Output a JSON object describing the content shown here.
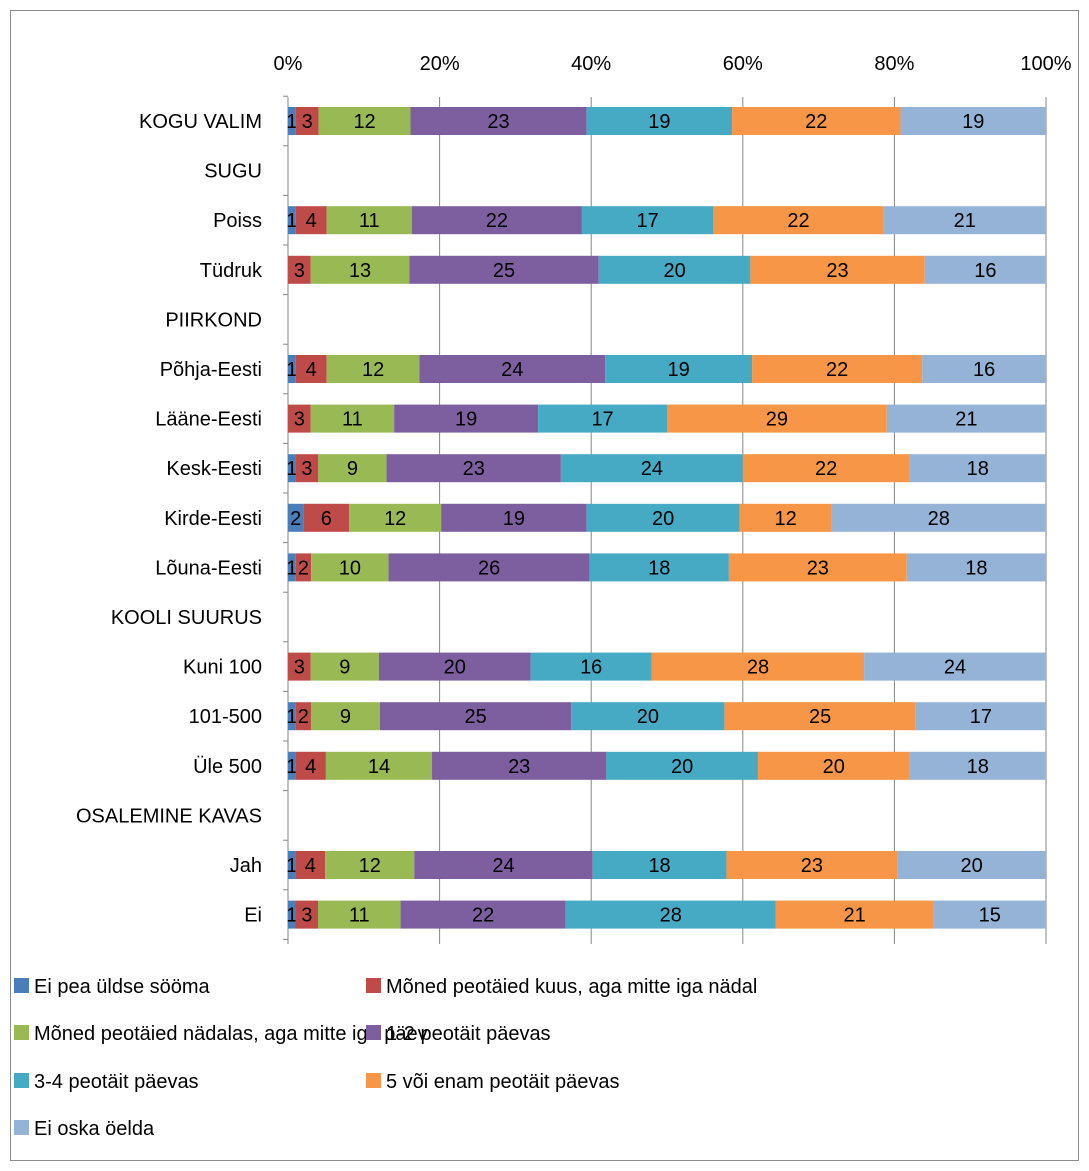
{
  "chart_data": {
    "type": "bar",
    "orientation": "horizontal",
    "stacked": "percent",
    "xlim": [
      0,
      100
    ],
    "x_ticks": [
      "0%",
      "20%",
      "40%",
      "60%",
      "80%",
      "100%"
    ],
    "grid": true,
    "legend_position": "bottom",
    "categories": [
      "KOGU VALIM",
      "SUGU",
      "Poiss",
      "Tüdruk",
      "PIIRKOND",
      "Põhja-Eesti",
      "Lääne-Eesti",
      "Kesk-Eesti",
      "Kirde-Eesti",
      "Lõuna-Eesti",
      "KOOLI SUURUS",
      "Kuni 100",
      "101-500",
      "Üle 500",
      "OSALEMINE KAVAS",
      "Jah",
      "Ei"
    ],
    "series": [
      {
        "name": "Ei pea üldse sööma",
        "color": "#4a7ebb",
        "values": [
          1,
          null,
          1,
          0,
          null,
          1,
          0,
          1,
          2,
          1,
          null,
          0,
          1,
          1,
          null,
          1,
          1
        ]
      },
      {
        "name": "Mõned peotäied kuus, aga mitte iga nädal",
        "color": "#be4b48",
        "values": [
          3,
          null,
          4,
          3,
          null,
          4,
          3,
          3,
          6,
          2,
          null,
          3,
          2,
          4,
          null,
          4,
          3
        ]
      },
      {
        "name": "Mõned peotäied nädalas, aga mitte iga päev",
        "color": "#98b954",
        "values": [
          12,
          null,
          11,
          13,
          null,
          12,
          11,
          9,
          12,
          10,
          null,
          9,
          9,
          14,
          null,
          12,
          11
        ]
      },
      {
        "name": "1-2 peotäit päevas",
        "color": "#7d5fa0",
        "values": [
          23,
          null,
          22,
          25,
          null,
          24,
          19,
          23,
          19,
          26,
          null,
          20,
          25,
          23,
          null,
          24,
          22
        ]
      },
      {
        "name": "3-4 peotäit päevas",
        "color": "#46aac5",
        "values": [
          19,
          null,
          17,
          20,
          null,
          19,
          17,
          24,
          20,
          18,
          null,
          16,
          20,
          20,
          null,
          18,
          28
        ]
      },
      {
        "name": "5 või enam peotäit päevas",
        "color": "#f79646",
        "values": [
          22,
          null,
          22,
          23,
          null,
          22,
          29,
          22,
          12,
          23,
          null,
          28,
          25,
          20,
          null,
          23,
          21
        ]
      },
      {
        "name": "Ei oska öelda",
        "color": "#95b3d7",
        "values": [
          19,
          null,
          21,
          16,
          null,
          16,
          21,
          18,
          28,
          18,
          null,
          24,
          17,
          18,
          null,
          20,
          15
        ]
      }
    ]
  }
}
